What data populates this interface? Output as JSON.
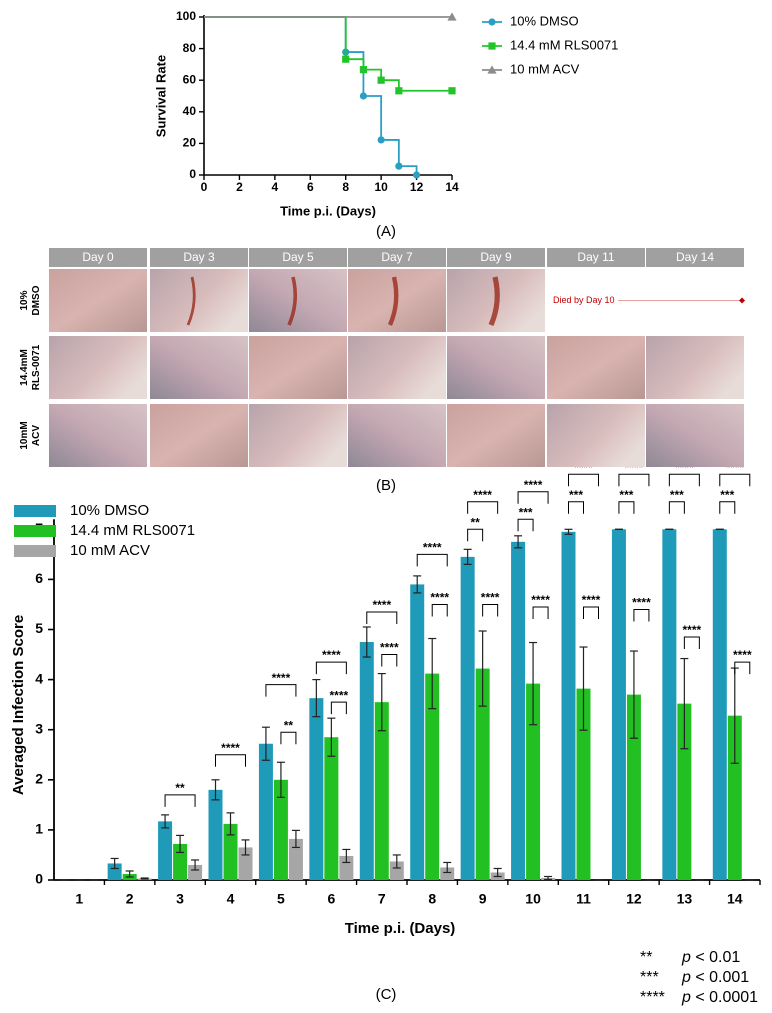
{
  "chart_data": [
    {
      "type": "line",
      "line_shape": "step",
      "x_label": "Time p.i. (Days)",
      "y_label": "Survival Rate",
      "xlim": [
        0,
        14
      ],
      "xticks": [
        0,
        2,
        4,
        6,
        8,
        10,
        12,
        14
      ],
      "ylim": [
        0,
        100
      ],
      "yticks": [
        0,
        20,
        40,
        60,
        80,
        100
      ],
      "series": [
        {
          "name": "10% DMSO",
          "color": "#2a9fc4",
          "marker": "circle",
          "x": [
            0,
            8,
            9,
            10,
            11,
            12
          ],
          "values": [
            100,
            77.8,
            50,
            22.2,
            5.6,
            0
          ]
        },
        {
          "name": "14.4 mM RLS0071",
          "color": "#22c42a",
          "marker": "square",
          "x": [
            0,
            8,
            9,
            10,
            11,
            14
          ],
          "values": [
            100,
            73.3,
            66.7,
            60,
            53.3,
            53.3
          ]
        },
        {
          "name": "10 mM ACV",
          "color": "#8c8c8c",
          "marker": "triangle",
          "x": [
            0,
            14
          ],
          "values": [
            100,
            100
          ]
        }
      ]
    },
    {
      "type": "bar",
      "x_label": "Time p.i. (Days)",
      "y_label": "Averaged Infection Score",
      "categories": [
        "1",
        "2",
        "3",
        "4",
        "5",
        "6",
        "7",
        "8",
        "9",
        "10",
        "11",
        "12",
        "13",
        "14"
      ],
      "ylim": [
        0,
        7.2
      ],
      "yticks": [
        0,
        1,
        2,
        3,
        4,
        5,
        6,
        7
      ],
      "series": [
        {
          "name": "10% DMSO",
          "color": "#1f9ab8",
          "values": [
            0,
            0.33,
            1.17,
            1.8,
            2.72,
            3.63,
            4.75,
            5.9,
            6.45,
            6.75,
            6.95,
            7,
            7,
            7
          ],
          "errors": [
            0,
            0.1,
            0.13,
            0.2,
            0.33,
            0.37,
            0.3,
            0.17,
            0.15,
            0.12,
            0.05,
            0,
            0,
            0
          ]
        },
        {
          "name": "14.4 mM RLS0071",
          "color": "#22c022",
          "values": [
            0,
            0.12,
            0.72,
            1.12,
            2.0,
            2.85,
            3.55,
            4.12,
            4.22,
            3.92,
            3.82,
            3.7,
            3.52,
            3.28
          ],
          "errors": [
            0,
            0.06,
            0.17,
            0.22,
            0.35,
            0.38,
            0.57,
            0.7,
            0.75,
            0.82,
            0.83,
            0.87,
            0.9,
            0.95
          ]
        },
        {
          "name": "10 mM ACV",
          "color": "#a6a6a6",
          "values": [
            0,
            0.03,
            0.3,
            0.65,
            0.82,
            0.48,
            0.37,
            0.25,
            0.15,
            0.04,
            0,
            0,
            0,
            0
          ],
          "errors": [
            0,
            0.01,
            0.1,
            0.15,
            0.17,
            0.13,
            0.13,
            0.1,
            0.08,
            0.03,
            0,
            0,
            0,
            0
          ]
        }
      ],
      "comparisons": [
        {
          "category": 2,
          "series": [
            0,
            2
          ],
          "y": 1.7,
          "label": "**"
        },
        {
          "category": 3,
          "series": [
            0,
            2
          ],
          "y": 2.5,
          "label": "****"
        },
        {
          "category": 4,
          "series": [
            0,
            2
          ],
          "y": 3.9,
          "label": "****"
        },
        {
          "category": 4,
          "series": [
            1,
            2
          ],
          "y": 2.95,
          "label": "**"
        },
        {
          "category": 5,
          "series": [
            0,
            2
          ],
          "y": 4.35,
          "label": "****"
        },
        {
          "category": 5,
          "series": [
            1,
            2
          ],
          "y": 3.55,
          "label": "****"
        },
        {
          "category": 6,
          "series": [
            0,
            2
          ],
          "y": 5.35,
          "label": "****"
        },
        {
          "category": 6,
          "series": [
            1,
            2
          ],
          "y": 4.5,
          "label": "****"
        },
        {
          "category": 7,
          "series": [
            0,
            2
          ],
          "y": 6.5,
          "label": "****"
        },
        {
          "category": 7,
          "series": [
            1,
            2
          ],
          "y": 5.5,
          "label": "****"
        },
        {
          "category": 8,
          "series": [
            0,
            2
          ],
          "y": 7.55,
          "label": "****"
        },
        {
          "category": 8,
          "series": [
            0,
            1
          ],
          "y": 7.0,
          "label": "**"
        },
        {
          "category": 8,
          "series": [
            1,
            2
          ],
          "y": 5.5,
          "label": "****"
        },
        {
          "category": 9,
          "series": [
            0,
            2
          ],
          "y": 7.75,
          "label": "****"
        },
        {
          "category": 9,
          "series": [
            0,
            1
          ],
          "y": 7.2,
          "label": "***"
        },
        {
          "category": 9,
          "series": [
            1,
            2
          ],
          "y": 5.45,
          "label": "****"
        },
        {
          "category": 10,
          "series": [
            0,
            2
          ],
          "y": 8.1,
          "label": "****"
        },
        {
          "category": 10,
          "series": [
            0,
            1
          ],
          "y": 7.55,
          "label": "***"
        },
        {
          "category": 10,
          "series": [
            1,
            2
          ],
          "y": 5.45,
          "label": "****"
        },
        {
          "category": 11,
          "series": [
            0,
            2
          ],
          "y": 8.1,
          "label": "****"
        },
        {
          "category": 11,
          "series": [
            0,
            1
          ],
          "y": 7.55,
          "label": "***"
        },
        {
          "category": 11,
          "series": [
            1,
            2
          ],
          "y": 5.4,
          "label": "****"
        },
        {
          "category": 12,
          "series": [
            0,
            2
          ],
          "y": 8.1,
          "label": "****"
        },
        {
          "category": 12,
          "series": [
            0,
            1
          ],
          "y": 7.55,
          "label": "***"
        },
        {
          "category": 12,
          "series": [
            1,
            2
          ],
          "y": 4.85,
          "label": "****"
        },
        {
          "category": 13,
          "series": [
            0,
            2
          ],
          "y": 8.1,
          "label": "****"
        },
        {
          "category": 13,
          "series": [
            0,
            1
          ],
          "y": 7.55,
          "label": "***"
        },
        {
          "category": 13,
          "series": [
            1,
            2
          ],
          "y": 4.35,
          "label": "****"
        }
      ],
      "significance_key": [
        {
          "label": "**",
          "note": "p < 0.01"
        },
        {
          "label": "***",
          "note": "p < 0.001"
        },
        {
          "label": "****",
          "note": "p < 0.0001"
        }
      ]
    }
  ],
  "photo_panel": {
    "columns": [
      "Day 0",
      "Day 3",
      "Day 5",
      "Day 7",
      "Day 9",
      "Day 11",
      "Day 14"
    ],
    "rows": [
      {
        "label": [
          "10%",
          "DMSO"
        ],
        "note": "Died by Day 10"
      },
      {
        "label": [
          "14.4mM",
          "RLS-0071"
        ]
      },
      {
        "label": [
          "10mM",
          "ACV"
        ]
      }
    ]
  },
  "panel_labels": [
    "(A)",
    "(B)",
    "(C)"
  ]
}
